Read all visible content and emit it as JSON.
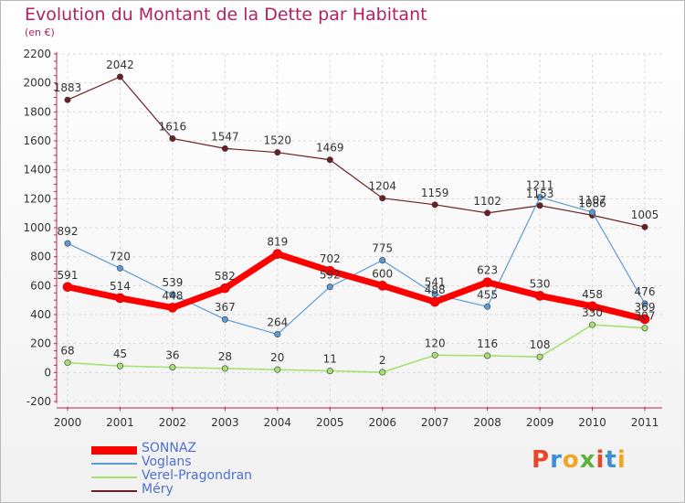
{
  "title": "Evolution du Montant de la Dette par Habitant",
  "subtitle": "(en €)",
  "logo": "Proxiti",
  "chart_data": {
    "type": "line",
    "title": "Evolution du Montant de la Dette par Habitant",
    "ylabel": "(en €)",
    "xlabel": "",
    "x": [
      "2000",
      "2001",
      "2002",
      "2003",
      "2004",
      "2005",
      "2006",
      "2007",
      "2008",
      "2009",
      "2010",
      "2011"
    ],
    "ylim": [
      -200,
      2200
    ],
    "yticks": [
      -200,
      0,
      200,
      400,
      600,
      800,
      1000,
      1200,
      1400,
      1600,
      1800,
      2000,
      2200
    ],
    "grid": true,
    "legend_position": "bottom-left",
    "series": [
      {
        "name": "SONNAZ",
        "color": "#ff0000",
        "width": 7,
        "values": [
          591,
          514,
          448,
          582,
          819,
          702,
          600,
          488,
          623,
          530,
          458,
          369
        ]
      },
      {
        "name": "Voglans",
        "color": "#5b9bd5",
        "width": 1.2,
        "values": [
          892,
          720,
          539,
          367,
          264,
          592,
          775,
          541,
          455,
          1211,
          1107,
          476
        ]
      },
      {
        "name": "Verel-Pragondran",
        "color": "#a5e070",
        "width": 1.6,
        "values": [
          68,
          45,
          36,
          28,
          20,
          11,
          2,
          120,
          116,
          108,
          330,
          307
        ]
      },
      {
        "name": "Méry",
        "color": "#6b1f24",
        "width": 1.2,
        "values": [
          1883,
          2042,
          1616,
          1547,
          1520,
          1469,
          1204,
          1159,
          1102,
          1153,
          1086,
          1005
        ]
      }
    ]
  }
}
